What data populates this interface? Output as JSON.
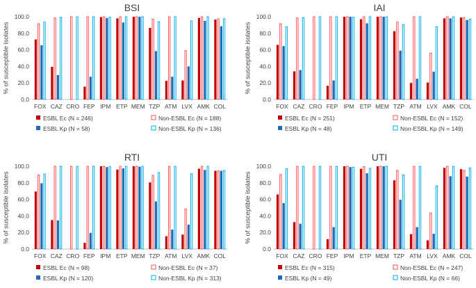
{
  "figure": {
    "ylabel": "% of susceptible isolates"
  },
  "chart_data": [
    {
      "type": "bar",
      "title": "BSI",
      "xlabel": "",
      "ylabel": "% of susceptible isolates",
      "ylim": [
        0,
        100
      ],
      "yticks": [
        "0.0",
        "20.0",
        "40.0",
        "60.0",
        "80.0",
        "100.0"
      ],
      "categories": [
        "FOX",
        "CAZ",
        "CRO",
        "FEP",
        "IPM",
        "ETP",
        "MEM",
        "TZP",
        "ATM",
        "LVX",
        "AMK",
        "COL"
      ],
      "series": [
        {
          "name": "ESBL Ec",
          "n_label": "(N = 246)",
          "style": "filled",
          "color": "#c00000",
          "values": [
            72.5,
            39.5,
            0,
            15.5,
            99.5,
            98.0,
            100,
            86.5,
            22.5,
            23.0,
            98.5,
            96.5
          ]
        },
        {
          "name": "Non-ESBL Ec",
          "n_label": "(N = 188)",
          "style": "outline",
          "color": "#ff5050",
          "values": [
            91.5,
            98.5,
            100,
            100,
            100,
            100,
            100,
            97.0,
            100,
            59.0,
            100,
            97.5
          ]
        },
        {
          "name": "ESBL Kp",
          "n_label": "(N = 58)",
          "style": "filled",
          "color": "#1f6bb8",
          "values": [
            65.5,
            29.5,
            0,
            27.5,
            98.5,
            93.0,
            100,
            58.5,
            27.5,
            40.0,
            95.0,
            88.5
          ]
        },
        {
          "name": "Non-ESBL Kp",
          "n_label": "(N = 136)",
          "style": "outline",
          "color": "#00b0f0",
          "values": [
            93.5,
            99.5,
            100,
            100,
            99.5,
            100,
            100,
            94.0,
            100,
            95.0,
            100,
            97.5
          ]
        }
      ]
    },
    {
      "type": "bar",
      "title": "IAI",
      "xlabel": "",
      "ylabel": "% of susceptible isolates",
      "ylim": [
        0,
        100
      ],
      "yticks": [
        "0.0",
        "20.0",
        "40.0",
        "60.0",
        "80.0",
        "100.0"
      ],
      "categories": [
        "FOX",
        "CAZ",
        "CRO",
        "FEP",
        "IPM",
        "ETP",
        "MEM",
        "TZP",
        "ATM",
        "LVX",
        "AMK",
        "COL"
      ],
      "series": [
        {
          "name": "ESBL Ec",
          "n_label": "(N = 251)",
          "style": "filled",
          "color": "#c00000",
          "values": [
            66.0,
            34.0,
            0,
            16.5,
            100,
            97.0,
            100,
            82.5,
            20.0,
            20.5,
            98.0,
            99.0
          ]
        },
        {
          "name": "Non-ESBL Ec",
          "n_label": "(N = 152)",
          "style": "outline",
          "color": "#ff5050",
          "values": [
            91.5,
            98.5,
            100,
            100,
            100,
            100,
            100,
            93.5,
            100,
            56.0,
            100,
            99.0
          ]
        },
        {
          "name": "ESBL Kp",
          "n_label": "(N = 48)",
          "style": "filled",
          "color": "#1f6bb8",
          "values": [
            64.5,
            35.5,
            0,
            23.0,
            100,
            92.0,
            100,
            59.0,
            25.0,
            33.5,
            98.0,
            96.0
          ]
        },
        {
          "name": "Non-ESBL Kp",
          "n_label": "(N = 149)",
          "style": "outline",
          "color": "#00b0f0",
          "values": [
            88.0,
            99.0,
            100,
            100,
            99.5,
            100,
            100,
            90.5,
            100,
            88.0,
            100,
            97.0
          ]
        }
      ]
    },
    {
      "type": "bar",
      "title": "RTI",
      "xlabel": "",
      "ylabel": "% of susceptible isolates",
      "ylim": [
        0,
        100
      ],
      "yticks": [
        "0.0",
        "20.0",
        "40.0",
        "60.0",
        "80.0",
        "100.0"
      ],
      "categories": [
        "FOX",
        "CAZ",
        "CRO",
        "FEP",
        "IPM",
        "ETP",
        "MEM",
        "TZP",
        "ATM",
        "LVX",
        "AMK",
        "COL"
      ],
      "series": [
        {
          "name": "ESBL Ec",
          "n_label": "(N = 98)",
          "style": "filled",
          "color": "#c00000",
          "values": [
            69.5,
            35.0,
            0,
            7.5,
            100,
            96.0,
            100,
            80.5,
            15.5,
            17.5,
            97.0,
            94.5
          ]
        },
        {
          "name": "Non-ESBL Ec",
          "n_label": "(N = 37)",
          "style": "outline",
          "color": "#ff5050",
          "values": [
            89.5,
            100,
            100,
            100,
            100,
            100,
            100,
            89.0,
            100,
            48.5,
            100,
            94.5
          ]
        },
        {
          "name": "ESBL Kp",
          "n_label": "(N = 120)",
          "style": "filled",
          "color": "#1f6bb8",
          "values": [
            79.5,
            34.5,
            0,
            19.5,
            99.0,
            97.5,
            99.5,
            57.5,
            23.5,
            29.5,
            95.5,
            94.5
          ]
        },
        {
          "name": "Non-ESBL Kp",
          "n_label": "(N = 313)",
          "style": "outline",
          "color": "#00b0f0",
          "values": [
            90.5,
            100,
            100,
            100,
            99.5,
            100,
            100,
            92.5,
            100,
            91.0,
            100,
            95.0
          ]
        }
      ]
    },
    {
      "type": "bar",
      "title": "UTI",
      "xlabel": "",
      "ylabel": "% of susceptible isolates",
      "ylim": [
        0,
        100
      ],
      "yticks": [
        "0.0",
        "20.0",
        "40.0",
        "60.0",
        "80.0",
        "100.0"
      ],
      "categories": [
        "FOX",
        "CAZ",
        "CRO",
        "FEP",
        "IPM",
        "ETP",
        "MEM",
        "TZP",
        "ATM",
        "LVX",
        "AMK",
        "COL"
      ],
      "series": [
        {
          "name": "ESBL Ec",
          "n_label": "(N = 315)",
          "style": "filled",
          "color": "#c00000",
          "values": [
            66.0,
            32.5,
            0,
            12.0,
            100,
            97.0,
            100,
            83.0,
            18.0,
            10.5,
            98.0,
            96.5
          ]
        },
        {
          "name": "Non-ESBL Ec",
          "n_label": "(N = 247)",
          "style": "outline",
          "color": "#ff5050",
          "values": [
            90.0,
            100,
            100,
            100,
            100,
            99.5,
            100,
            95.0,
            100,
            43.5,
            100,
            95.0
          ]
        },
        {
          "name": "ESBL Kp",
          "n_label": "(N = 49)",
          "style": "filled",
          "color": "#1f6bb8",
          "values": [
            55.5,
            30.5,
            0,
            26.5,
            99.0,
            91.5,
            100,
            59.5,
            26.5,
            18.5,
            88.0,
            87.5
          ]
        },
        {
          "name": "Non-ESBL Kp",
          "n_label": "(N = 66)",
          "style": "outline",
          "color": "#00b0f0",
          "values": [
            97.0,
            100,
            100,
            100,
            99.0,
            97.5,
            100,
            89.5,
            100,
            76.5,
            100,
            98.0
          ]
        }
      ]
    }
  ]
}
